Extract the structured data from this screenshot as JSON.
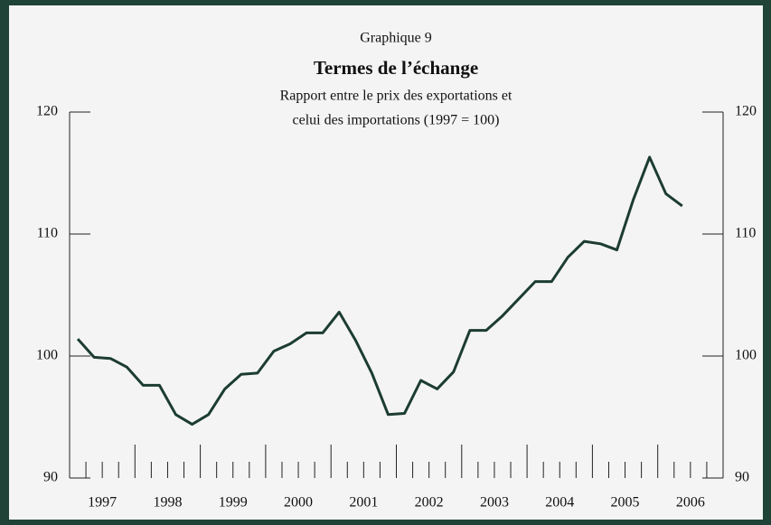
{
  "chart_data": {
    "type": "line",
    "label": "Graphique 9",
    "title": "Termes de l’échange",
    "subtitle": [
      "Rapport entre le prix des exportations et",
      "celui des importations (1997 = 100)"
    ],
    "x": [
      1997.125,
      1997.375,
      1997.625,
      1997.875,
      1998.125,
      1998.375,
      1998.625,
      1998.875,
      1999.125,
      1999.375,
      1999.625,
      1999.875,
      2000.125,
      2000.375,
      2000.625,
      2000.875,
      2001.125,
      2001.375,
      2001.625,
      2001.875,
      2002.125,
      2002.375,
      2002.625,
      2002.875,
      2003.125,
      2003.375,
      2003.625,
      2003.875,
      2004.125,
      2004.375,
      2004.625,
      2004.875,
      2005.125,
      2005.375,
      2005.625,
      2005.875,
      2006.125,
      2006.375
    ],
    "series": [
      {
        "color": "#1c3c32",
        "values": [
          101.4,
          99.9,
          99.8,
          99.1,
          97.6,
          97.6,
          95.2,
          94.4,
          95.2,
          97.3,
          98.5,
          98.6,
          100.4,
          101.0,
          101.9,
          101.9,
          103.6,
          101.3,
          98.6,
          95.2,
          95.3,
          98.0,
          97.3,
          98.7,
          102.1,
          102.1,
          103.3,
          104.7,
          106.1,
          106.1,
          108.1,
          109.4,
          109.2,
          108.7,
          112.8,
          116.3,
          113.3,
          112.3
        ]
      }
    ],
    "xlim": [
      1997,
      2007
    ],
    "year_labels": [
      "1997",
      "1998",
      "1999",
      "2000",
      "2001",
      "2002",
      "2003",
      "2004",
      "2005",
      "2006"
    ],
    "major_xticks": [
      1998,
      1999,
      2000,
      2001,
      2002,
      2003,
      2004,
      2005,
      2006
    ],
    "minor_xticks": [
      1997.25,
      1997.5,
      1997.75,
      1998.25,
      1998.5,
      1998.75,
      1999.25,
      1999.5,
      1999.75,
      2000.25,
      2000.5,
      2000.75,
      2001.25,
      2001.5,
      2001.75,
      2002.25,
      2002.5,
      2002.75,
      2003.25,
      2003.5,
      2003.75,
      2004.25,
      2004.5,
      2004.75,
      2005.25,
      2005.5,
      2005.75,
      2006.25,
      2006.5,
      2006.75
    ],
    "ylim": [
      90,
      120
    ],
    "yticks": [
      90,
      100,
      110,
      120
    ]
  }
}
